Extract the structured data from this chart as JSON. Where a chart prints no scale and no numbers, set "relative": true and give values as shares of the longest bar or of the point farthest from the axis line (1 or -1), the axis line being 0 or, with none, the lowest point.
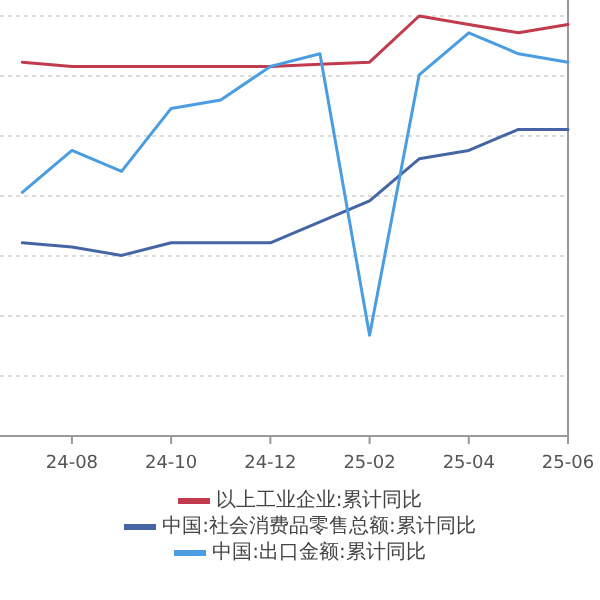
{
  "chart_data": {
    "type": "line",
    "relative": true,
    "grid": "y",
    "legend": "bottom",
    "marker": "none",
    "line_style": "solid",
    "categories": [
      null,
      "24-08",
      null,
      "24-10",
      null,
      "24-12",
      null,
      "25-02",
      null,
      "25-04",
      null,
      "25-06"
    ],
    "series": [
      {
        "name": "以上工业企业:累计同比",
        "color": "#c23b4c",
        "values": [
          0.89,
          0.88,
          0.88,
          0.88,
          0.88,
          0.88,
          0.885,
          0.89,
          1,
          0.98,
          0.96,
          0.98
        ]
      },
      {
        "name": "中国:社会消费品零售总额:累计同比",
        "color": "#4565a5",
        "values": [
          0.46,
          0.45,
          0.43,
          0.46,
          0.46,
          0.46,
          0.51,
          0.56,
          0.66,
          0.68,
          0.73,
          0.73
        ]
      },
      {
        "name": "中国:出口金额:累计同比",
        "color": "#4a9de0",
        "values": [
          0.58,
          0.68,
          0.63,
          0.78,
          0.8,
          0.88,
          0.91,
          0.24,
          0.86,
          0.96,
          0.91,
          0.89
        ]
      }
    ]
  }
}
